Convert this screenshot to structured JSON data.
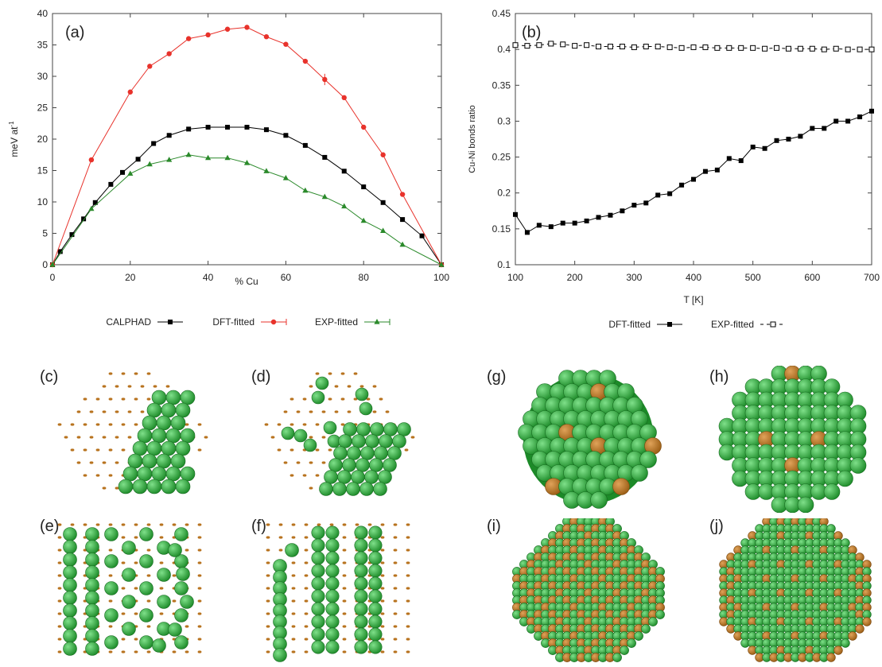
{
  "chart_data": [
    {
      "type": "line",
      "panel_label": "(a)",
      "xlabel": "% Cu",
      "ylabel": "meV at",
      "ylabel_sup": "-1",
      "xlim": [
        0,
        100
      ],
      "ylim": [
        0,
        40
      ],
      "xticks": [
        "0",
        "20",
        "40",
        "60",
        "80",
        "100"
      ],
      "yticks": [
        "0",
        "5",
        "10",
        "15",
        "20",
        "25",
        "30",
        "35",
        "40"
      ],
      "grid": false,
      "legend_position": "bottom",
      "series": [
        {
          "name": "CALPHAD",
          "color": "#000000",
          "marker": "square",
          "x": [
            0,
            2,
            5,
            8,
            11,
            15,
            18,
            22,
            26,
            30,
            35,
            40,
            45,
            50,
            55,
            60,
            65,
            70,
            75,
            80,
            85,
            90,
            95,
            100
          ],
          "y": [
            0,
            2.1,
            4.8,
            7.3,
            9.9,
            12.8,
            14.7,
            16.8,
            19.3,
            20.6,
            21.6,
            21.9,
            21.9,
            21.9,
            21.5,
            20.6,
            19.0,
            17.1,
            14.9,
            12.4,
            9.9,
            7.2,
            4.6,
            0
          ]
        },
        {
          "name": "DFT-fitted",
          "color": "#e8322b",
          "marker": "circle",
          "x": [
            0,
            10,
            20,
            25,
            30,
            35,
            40,
            45,
            50,
            55,
            60,
            65,
            70,
            75,
            80,
            85,
            90,
            100
          ],
          "y": [
            0,
            16.7,
            27.5,
            31.6,
            33.6,
            36.0,
            36.6,
            37.5,
            37.8,
            36.3,
            35.1,
            32.4,
            29.5,
            26.6,
            21.9,
            17.5,
            11.2,
            0
          ]
        },
        {
          "name": "EXP-fitted",
          "color": "#2b8a2b",
          "marker": "triangle",
          "x": [
            0,
            10,
            20,
            25,
            30,
            35,
            40,
            45,
            50,
            55,
            60,
            65,
            70,
            75,
            80,
            85,
            90,
            100
          ],
          "y": [
            0,
            8.9,
            14.5,
            16.0,
            16.7,
            17.5,
            17.0,
            17.0,
            16.2,
            14.9,
            13.8,
            11.8,
            10.8,
            9.3,
            7.0,
            5.4,
            3.2,
            0
          ]
        }
      ]
    },
    {
      "type": "line",
      "panel_label": "(b)",
      "xlabel": "T [K]",
      "ylabel": "Cu-Ni bonds ratio",
      "xlim": [
        100,
        700
      ],
      "ylim": [
        0.1,
        0.45
      ],
      "xticks": [
        "100",
        "200",
        "300",
        "400",
        "500",
        "600",
        "700"
      ],
      "yticks": [
        "0.1",
        "0.15",
        "0.2",
        "0.25",
        "0.3",
        "0.35",
        "0.4",
        "0.45"
      ],
      "grid": false,
      "legend_position": "bottom",
      "series": [
        {
          "name": "DFT-fitted",
          "color": "#000000",
          "marker": "filled-square",
          "line": "solid",
          "x": [
            100,
            120,
            140,
            160,
            180,
            200,
            220,
            240,
            260,
            280,
            300,
            320,
            340,
            360,
            380,
            400,
            420,
            440,
            460,
            480,
            500,
            520,
            540,
            560,
            580,
            600,
            620,
            640,
            660,
            680,
            700
          ],
          "y": [
            0.17,
            0.145,
            0.155,
            0.153,
            0.158,
            0.158,
            0.161,
            0.166,
            0.169,
            0.175,
            0.183,
            0.186,
            0.197,
            0.199,
            0.211,
            0.219,
            0.23,
            0.232,
            0.248,
            0.245,
            0.264,
            0.262,
            0.273,
            0.275,
            0.279,
            0.29,
            0.29,
            0.3,
            0.3,
            0.306,
            0.314
          ]
        },
        {
          "name": "EXP-fitted",
          "color": "#000000",
          "marker": "open-square",
          "line": "dashed",
          "x": [
            100,
            120,
            140,
            160,
            180,
            200,
            220,
            240,
            260,
            280,
            300,
            320,
            340,
            360,
            380,
            400,
            420,
            440,
            460,
            480,
            500,
            520,
            540,
            560,
            580,
            600,
            620,
            640,
            660,
            680,
            700
          ],
          "y": [
            0.406,
            0.405,
            0.406,
            0.408,
            0.407,
            0.405,
            0.406,
            0.404,
            0.404,
            0.404,
            0.403,
            0.404,
            0.404,
            0.403,
            0.402,
            0.403,
            0.403,
            0.402,
            0.402,
            0.402,
            0.402,
            0.401,
            0.402,
            0.401,
            0.401,
            0.401,
            0.4,
            0.401,
            0.4,
            0.4,
            0.4
          ]
        }
      ]
    }
  ],
  "structures": [
    {
      "label": "(c)",
      "name": "slab-segregated"
    },
    {
      "label": "(d)",
      "name": "slab-partial"
    },
    {
      "label": "(e)",
      "name": "cube-layers"
    },
    {
      "label": "(f)",
      "name": "cube-mixed"
    },
    {
      "label": "(g)",
      "name": "sphere-dft"
    },
    {
      "label": "(h)",
      "name": "sphere-exp"
    },
    {
      "label": "(i)",
      "name": "ordered-diag"
    },
    {
      "label": "(j)",
      "name": "ordered-square"
    }
  ],
  "colors": {
    "ni_atom": "#2ea83a",
    "cu_atom": "#b8731f"
  }
}
